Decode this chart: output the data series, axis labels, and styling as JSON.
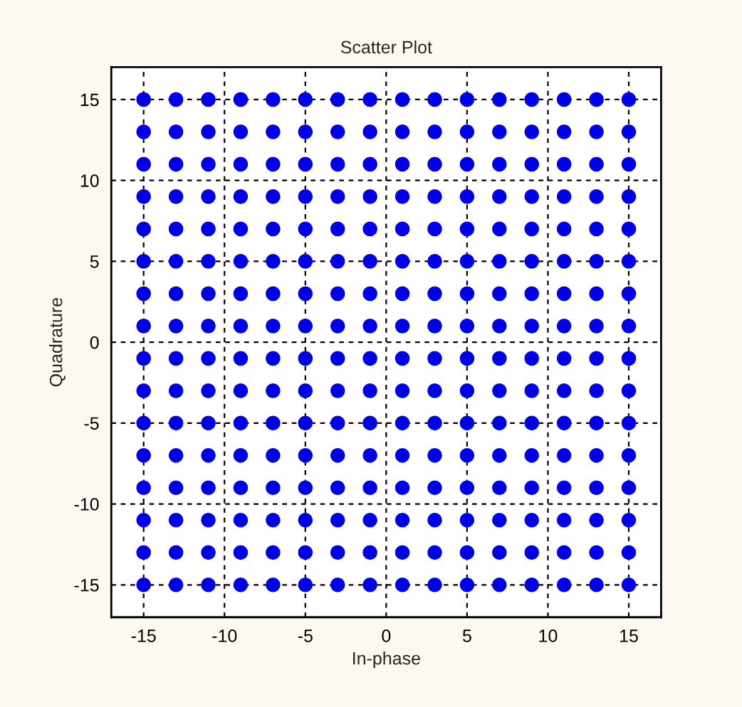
{
  "chart_data": {
    "type": "scatter",
    "title": "Scatter Plot",
    "xlabel": "In-phase",
    "ylabel": "Quadrature",
    "series": [
      {
        "color": "#0000e6",
        "x": [
          -15,
          -13,
          -11,
          -9,
          -7,
          -5,
          -3,
          -1,
          1,
          3,
          5,
          7,
          9,
          11,
          13,
          15,
          -15,
          -13,
          -11,
          -9,
          -7,
          -5,
          -3,
          -1,
          1,
          3,
          5,
          7,
          9,
          11,
          13,
          15,
          -15,
          -13,
          -11,
          -9,
          -7,
          -5,
          -3,
          -1,
          1,
          3,
          5,
          7,
          9,
          11,
          13,
          15,
          -15,
          -13,
          -11,
          -9,
          -7,
          -5,
          -3,
          -1,
          1,
          3,
          5,
          7,
          9,
          11,
          13,
          15,
          -15,
          -13,
          -11,
          -9,
          -7,
          -5,
          -3,
          -1,
          1,
          3,
          5,
          7,
          9,
          11,
          13,
          15,
          -15,
          -13,
          -11,
          -9,
          -7,
          -5,
          -3,
          -1,
          1,
          3,
          5,
          7,
          9,
          11,
          13,
          15,
          -15,
          -13,
          -11,
          -9,
          -7,
          -5,
          -3,
          -1,
          1,
          3,
          5,
          7,
          9,
          11,
          13,
          15,
          -15,
          -13,
          -11,
          -9,
          -7,
          -5,
          -3,
          -1,
          1,
          3,
          5,
          7,
          9,
          11,
          13,
          15,
          -15,
          -13,
          -11,
          -9,
          -7,
          -5,
          -3,
          -1,
          1,
          3,
          5,
          7,
          9,
          11,
          13,
          15,
          -15,
          -13,
          -11,
          -9,
          -7,
          -5,
          -3,
          -1,
          1,
          3,
          5,
          7,
          9,
          11,
          13,
          15,
          -15,
          -13,
          -11,
          -9,
          -7,
          -5,
          -3,
          -1,
          1,
          3,
          5,
          7,
          9,
          11,
          13,
          15,
          -15,
          -13,
          -11,
          -9,
          -7,
          -5,
          -3,
          -1,
          1,
          3,
          5,
          7,
          9,
          11,
          13,
          15,
          -15,
          -13,
          -11,
          -9,
          -7,
          -5,
          -3,
          -1,
          1,
          3,
          5,
          7,
          9,
          11,
          13,
          15,
          -15,
          -13,
          -11,
          -9,
          -7,
          -5,
          -3,
          -1,
          1,
          3,
          5,
          7,
          9,
          11,
          13,
          15,
          -15,
          -13,
          -11,
          -9,
          -7,
          -5,
          -3,
          -1,
          1,
          3,
          5,
          7,
          9,
          11,
          13,
          15,
          -15,
          -13,
          -11,
          -9,
          -7,
          -5,
          -3,
          -1,
          1,
          3,
          5,
          7,
          9,
          11,
          13,
          15
        ],
        "values": [
          15,
          15,
          15,
          15,
          15,
          15,
          15,
          15,
          15,
          15,
          15,
          15,
          15,
          15,
          15,
          15,
          13,
          13,
          13,
          13,
          13,
          13,
          13,
          13,
          13,
          13,
          13,
          13,
          13,
          13,
          13,
          13,
          11,
          11,
          11,
          11,
          11,
          11,
          11,
          11,
          11,
          11,
          11,
          11,
          11,
          11,
          11,
          11,
          9,
          9,
          9,
          9,
          9,
          9,
          9,
          9,
          9,
          9,
          9,
          9,
          9,
          9,
          9,
          9,
          7,
          7,
          7,
          7,
          7,
          7,
          7,
          7,
          7,
          7,
          7,
          7,
          7,
          7,
          7,
          7,
          5,
          5,
          5,
          5,
          5,
          5,
          5,
          5,
          5,
          5,
          5,
          5,
          5,
          5,
          5,
          5,
          3,
          3,
          3,
          3,
          3,
          3,
          3,
          3,
          3,
          3,
          3,
          3,
          3,
          3,
          3,
          3,
          1,
          1,
          1,
          1,
          1,
          1,
          1,
          1,
          1,
          1,
          1,
          1,
          1,
          1,
          1,
          1,
          -1,
          -1,
          -1,
          -1,
          -1,
          -1,
          -1,
          -1,
          -1,
          -1,
          -1,
          -1,
          -1,
          -1,
          -1,
          -1,
          -3,
          -3,
          -3,
          -3,
          -3,
          -3,
          -3,
          -3,
          -3,
          -3,
          -3,
          -3,
          -3,
          -3,
          -3,
          -3,
          -5,
          -5,
          -5,
          -5,
          -5,
          -5,
          -5,
          -5,
          -5,
          -5,
          -5,
          -5,
          -5,
          -5,
          -5,
          -5,
          -7,
          -7,
          -7,
          -7,
          -7,
          -7,
          -7,
          -7,
          -7,
          -7,
          -7,
          -7,
          -7,
          -7,
          -7,
          -7,
          -9,
          -9,
          -9,
          -9,
          -9,
          -9,
          -9,
          -9,
          -9,
          -9,
          -9,
          -9,
          -9,
          -9,
          -9,
          -9,
          -11,
          -11,
          -11,
          -11,
          -11,
          -11,
          -11,
          -11,
          -11,
          -11,
          -11,
          -11,
          -11,
          -11,
          -11,
          -11,
          -13,
          -13,
          -13,
          -13,
          -13,
          -13,
          -13,
          -13,
          -13,
          -13,
          -13,
          -13,
          -13,
          -13,
          -13,
          -13,
          -15,
          -15,
          -15,
          -15,
          -15,
          -15,
          -15,
          -15,
          -15,
          -15,
          -15,
          -15,
          -15,
          -15,
          -15,
          -15
        ]
      }
    ],
    "xlim": [
      -17,
      17
    ],
    "ylim": [
      -17,
      17
    ],
    "xticks": [
      -15,
      -10,
      -5,
      0,
      5,
      10,
      15
    ],
    "yticks": [
      -15,
      -10,
      -5,
      0,
      5,
      10,
      15
    ],
    "grid": true,
    "marker": "circle"
  }
}
